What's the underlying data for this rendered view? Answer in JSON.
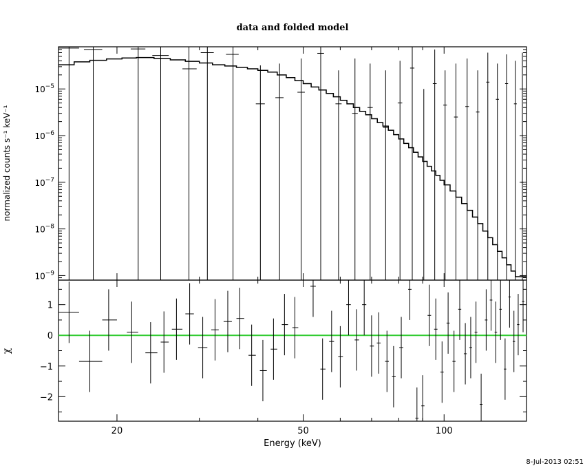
{
  "chart_data": {
    "type": "line",
    "title": "data and folded model",
    "xlabel": "Energy (keV)",
    "footer_timestamp": "8-Jul-2013 02:51",
    "xscale": "log",
    "xlim": [
      15,
      150
    ],
    "x_ticks": [
      {
        "value": 20,
        "label": "20"
      },
      {
        "value": 50,
        "label": "50"
      },
      {
        "value": 100,
        "label": "100"
      }
    ],
    "top_panel": {
      "ylabel": "normalized counts s⁻¹ keV⁻¹",
      "yscale": "log",
      "ylim": [
        8e-10,
        8e-05
      ],
      "y_ticks": [
        {
          "value": 1e-09,
          "label": "10",
          "exp": "−9"
        },
        {
          "value": 1e-08,
          "label": "10",
          "exp": "−8"
        },
        {
          "value": 1e-07,
          "label": "10",
          "exp": "−7"
        },
        {
          "value": 1e-06,
          "label": "10",
          "exp": "−6"
        },
        {
          "value": 1e-05,
          "label": "10",
          "exp": "−5"
        }
      ],
      "model_step": [
        [
          15,
          3.3e-05
        ],
        [
          16.2,
          3.8e-05
        ],
        [
          17.5,
          4.1e-05
        ],
        [
          19,
          4.4e-05
        ],
        [
          20.5,
          4.6e-05
        ],
        [
          22,
          4.7e-05
        ],
        [
          24,
          4.5e-05
        ],
        [
          26,
          4.2e-05
        ],
        [
          28,
          3.9e-05
        ],
        [
          30,
          3.6e-05
        ],
        [
          32,
          3.3e-05
        ],
        [
          34,
          3.1e-05
        ],
        [
          36,
          2.9e-05
        ],
        [
          38,
          2.7e-05
        ],
        [
          40,
          2.5e-05
        ],
        [
          42,
          2.3e-05
        ],
        [
          44,
          2e-05
        ],
        [
          46,
          1.75e-05
        ],
        [
          48,
          1.5e-05
        ],
        [
          50,
          1.3e-05
        ],
        [
          52,
          1.1e-05
        ],
        [
          54,
          9.5e-06
        ],
        [
          56,
          8e-06
        ],
        [
          58,
          6.8e-06
        ],
        [
          60,
          5.7e-06
        ],
        [
          62,
          4.8e-06
        ],
        [
          64,
          4e-06
        ],
        [
          66,
          3.3e-06
        ],
        [
          68,
          2.8e-06
        ],
        [
          70,
          2.3e-06
        ],
        [
          72,
          1.9e-06
        ],
        [
          74,
          1.6e-06
        ],
        [
          76,
          1.3e-06
        ],
        [
          78,
          1.05e-06
        ],
        [
          80,
          8.5e-07
        ],
        [
          82,
          6.8e-07
        ],
        [
          84,
          5.5e-07
        ],
        [
          86,
          4.4e-07
        ],
        [
          88,
          3.5e-07
        ],
        [
          90,
          2.8e-07
        ],
        [
          92,
          2.2e-07
        ],
        [
          94,
          1.75e-07
        ],
        [
          96,
          1.4e-07
        ],
        [
          98,
          1.1e-07
        ],
        [
          100,
          8.8e-08
        ],
        [
          103,
          6.5e-08
        ],
        [
          106,
          4.8e-08
        ],
        [
          109,
          3.5e-08
        ],
        [
          112,
          2.5e-08
        ],
        [
          115,
          1.8e-08
        ],
        [
          118,
          1.3e-08
        ],
        [
          121,
          9e-09
        ],
        [
          124,
          6.5e-09
        ],
        [
          127,
          4.6e-09
        ],
        [
          130,
          3.3e-09
        ],
        [
          133,
          2.4e-09
        ],
        [
          136,
          1.7e-09
        ],
        [
          139,
          1.25e-09
        ],
        [
          142,
          9.5e-10
        ],
        [
          150,
          9.5e-10
        ]
      ],
      "data_points": [
        {
          "x": 15.8,
          "xlo": 15,
          "xhi": 16.6,
          "y": 7.5e-05,
          "ylo": 8e-10,
          "yhi": 8e-05
        },
        {
          "x": 17.8,
          "xlo": 17,
          "xhi": 18.6,
          "y": 7e-05,
          "ylo": 8e-10,
          "yhi": 8e-05
        },
        {
          "x": 22.2,
          "xlo": 21.4,
          "xhi": 23.0,
          "y": 7.2e-05,
          "ylo": 8e-10,
          "yhi": 8e-05
        },
        {
          "x": 24.8,
          "xlo": 23.8,
          "xhi": 25.8,
          "y": 5.2e-05,
          "ylo": 8e-10,
          "yhi": 8e-05
        },
        {
          "x": 28.5,
          "xlo": 27.6,
          "xhi": 29.6,
          "y": 2.7e-05,
          "ylo": 8e-10,
          "yhi": 8e-05
        },
        {
          "x": 31.2,
          "xlo": 30.2,
          "xhi": 32.2,
          "y": 6e-05,
          "ylo": 8e-10,
          "yhi": 8e-05
        },
        {
          "x": 35.4,
          "xlo": 34.2,
          "xhi": 36.4,
          "y": 5.5e-05,
          "ylo": 8e-10,
          "yhi": 8e-05
        },
        {
          "x": 40.5,
          "xlo": 39.6,
          "xhi": 41.4,
          "y": 4.8e-06,
          "ylo": 8e-10,
          "yhi": 3.2e-05
        },
        {
          "x": 44.5,
          "xlo": 43.6,
          "xhi": 45.4,
          "y": 6.5e-06,
          "ylo": 8e-10,
          "yhi": 3.5e-05
        },
        {
          "x": 49.5,
          "xlo": 48.6,
          "xhi": 50.4,
          "y": 8.5e-06,
          "ylo": 8e-10,
          "yhi": 4.5e-05
        },
        {
          "x": 54.5,
          "xlo": 53.6,
          "xhi": 55.4,
          "y": 5.8e-05,
          "ylo": 8e-10,
          "yhi": 8e-05
        },
        {
          "x": 59.5,
          "xlo": 58.6,
          "xhi": 60.4,
          "y": 4.8e-06,
          "ylo": 8e-10,
          "yhi": 2.5e-05
        },
        {
          "x": 64.5,
          "xlo": 63.6,
          "xhi": 65.4,
          "y": 3e-06,
          "ylo": 8e-10,
          "yhi": 4.5e-05
        },
        {
          "x": 69.5,
          "xlo": 68.6,
          "xhi": 70.4,
          "y": 4e-06,
          "ylo": 8e-10,
          "yhi": 3.5e-05
        },
        {
          "x": 75.0,
          "xlo": 74.0,
          "xhi": 76.0,
          "y": 1.5e-06,
          "ylo": 8e-10,
          "yhi": 2.5e-05
        },
        {
          "x": 80.5,
          "xlo": 79.6,
          "xhi": 81.4,
          "y": 5e-06,
          "ylo": 8e-10,
          "yhi": 4e-05
        },
        {
          "x": 85.5,
          "xlo": 84.6,
          "xhi": 86.4,
          "y": 2.8e-05,
          "ylo": 8e-10,
          "yhi": 8e-05
        },
        {
          "x": 90.5,
          "xlo": 89.6,
          "xhi": 91.4,
          "y": 8e-10,
          "ylo": 8e-10,
          "yhi": 1e-05
        },
        {
          "x": 95.5,
          "xlo": 94.6,
          "xhi": 96.4,
          "y": 1.3e-05,
          "ylo": 8e-10,
          "yhi": 7e-05
        },
        {
          "x": 100.5,
          "xlo": 99.6,
          "xhi": 101.4,
          "y": 4.5e-06,
          "ylo": 8e-10,
          "yhi": 2.5e-05
        },
        {
          "x": 106.0,
          "xlo": 105.0,
          "xhi": 107.0,
          "y": 2.5e-06,
          "ylo": 8e-10,
          "yhi": 3.5e-05
        },
        {
          "x": 112.0,
          "xlo": 111.0,
          "xhi": 113.0,
          "y": 4.2e-06,
          "ylo": 8e-10,
          "yhi": 4.5e-05
        },
        {
          "x": 118.0,
          "xlo": 117.0,
          "xhi": 119.0,
          "y": 3.2e-06,
          "ylo": 8e-10,
          "yhi": 2.5e-05
        },
        {
          "x": 124.0,
          "xlo": 123.0,
          "xhi": 125.0,
          "y": 1.4e-05,
          "ylo": 8e-10,
          "yhi": 6e-05
        },
        {
          "x": 130.0,
          "xlo": 129.0,
          "xhi": 131.0,
          "y": 6e-06,
          "ylo": 8e-10,
          "yhi": 3.5e-05
        },
        {
          "x": 136.0,
          "xlo": 135.0,
          "xhi": 137.0,
          "y": 1.3e-05,
          "ylo": 8e-10,
          "yhi": 5.5e-05
        },
        {
          "x": 142.0,
          "xlo": 141.0,
          "xhi": 143.0,
          "y": 4.8e-06,
          "ylo": 8e-10,
          "yhi": 4e-05
        },
        {
          "x": 147.0,
          "xlo": 146.0,
          "xhi": 148.0,
          "y": 1e-07,
          "ylo": 8e-10,
          "yhi": 6e-05
        }
      ]
    },
    "bottom_panel": {
      "ylabel": "χ",
      "ylim": [
        -2.8,
        1.8
      ],
      "y_ticks": [
        {
          "value": -2,
          "label": "−2"
        },
        {
          "value": -1,
          "label": "−1"
        },
        {
          "value": 0,
          "label": "0"
        },
        {
          "value": 1,
          "label": "1"
        }
      ],
      "zero_line_color": "#33cc33",
      "residuals": [
        {
          "x": 15.8,
          "xlo": 15,
          "xhi": 16.6,
          "y": 0.75,
          "err": 1.0
        },
        {
          "x": 17.5,
          "xlo": 16.6,
          "xhi": 18.6,
          "y": -0.85,
          "err": 1.0
        },
        {
          "x": 19.2,
          "xlo": 18.6,
          "xhi": 20.0,
          "y": 0.5,
          "err": 1.0
        },
        {
          "x": 21.5,
          "xlo": 21.0,
          "xhi": 22.2,
          "y": 0.1,
          "err": 1.0
        },
        {
          "x": 23.6,
          "xlo": 23.0,
          "xhi": 24.4,
          "y": -0.57,
          "err": 1.0
        },
        {
          "x": 25.2,
          "xlo": 24.8,
          "xhi": 25.8,
          "y": -0.22,
          "err": 1.0
        },
        {
          "x": 26.8,
          "xlo": 26.2,
          "xhi": 27.6,
          "y": 0.2,
          "err": 1.0
        },
        {
          "x": 28.6,
          "xlo": 28.0,
          "xhi": 29.2,
          "y": 0.7,
          "err": 1.0
        },
        {
          "x": 30.5,
          "xlo": 29.8,
          "xhi": 31.2,
          "y": -0.4,
          "err": 1.0
        },
        {
          "x": 32.4,
          "xlo": 31.8,
          "xhi": 33.0,
          "y": 0.18,
          "err": 1.0
        },
        {
          "x": 34.5,
          "xlo": 33.8,
          "xhi": 35.2,
          "y": 0.45,
          "err": 1.0
        },
        {
          "x": 36.6,
          "xlo": 36.0,
          "xhi": 37.4,
          "y": 0.55,
          "err": 1.0
        },
        {
          "x": 38.8,
          "xlo": 38.2,
          "xhi": 39.6,
          "y": -0.65,
          "err": 1.0
        },
        {
          "x": 41.0,
          "xlo": 40.4,
          "xhi": 41.8,
          "y": -1.15,
          "err": 1.0
        },
        {
          "x": 43.2,
          "xlo": 42.6,
          "xhi": 44.0,
          "y": -0.45,
          "err": 1.0
        },
        {
          "x": 45.6,
          "xlo": 45.0,
          "xhi": 46.4,
          "y": 0.35,
          "err": 1.0
        },
        {
          "x": 48.0,
          "xlo": 47.4,
          "xhi": 48.8,
          "y": 0.25,
          "err": 1.0
        },
        {
          "x": 52.5,
          "xlo": 51.8,
          "xhi": 53.2,
          "y": 1.6,
          "err": 1.0
        },
        {
          "x": 55.0,
          "xlo": 54.4,
          "xhi": 55.8,
          "y": -1.1,
          "err": 1.0
        },
        {
          "x": 57.5,
          "xlo": 56.8,
          "xhi": 58.2,
          "y": -0.2,
          "err": 1.0
        },
        {
          "x": 60.0,
          "xlo": 59.4,
          "xhi": 60.8,
          "y": -0.7,
          "err": 1.0
        },
        {
          "x": 62.5,
          "xlo": 61.8,
          "xhi": 63.2,
          "y": 1.0,
          "err": 1.0
        },
        {
          "x": 65.0,
          "xlo": 64.4,
          "xhi": 65.8,
          "y": -0.15,
          "err": 1.0
        },
        {
          "x": 67.5,
          "xlo": 66.8,
          "xhi": 68.2,
          "y": 1.0,
          "err": 1.0
        },
        {
          "x": 70.0,
          "xlo": 69.4,
          "xhi": 70.8,
          "y": -0.35,
          "err": 1.0
        },
        {
          "x": 72.5,
          "xlo": 71.8,
          "xhi": 73.2,
          "y": -0.25,
          "err": 1.0
        },
        {
          "x": 75.5,
          "xlo": 74.8,
          "xhi": 76.2,
          "y": -0.85,
          "err": 1.0
        },
        {
          "x": 78.0,
          "xlo": 77.4,
          "xhi": 78.8,
          "y": -1.35,
          "err": 1.0
        },
        {
          "x": 81.0,
          "xlo": 80.2,
          "xhi": 81.8,
          "y": -0.4,
          "err": 1.0
        },
        {
          "x": 84.5,
          "xlo": 83.8,
          "xhi": 85.2,
          "y": 1.5,
          "err": 1.0
        },
        {
          "x": 87.5,
          "xlo": 86.8,
          "xhi": 88.2,
          "y": -2.7,
          "err": 1.0
        },
        {
          "x": 90.0,
          "xlo": 89.4,
          "xhi": 90.8,
          "y": -2.3,
          "err": 1.0
        },
        {
          "x": 93.0,
          "xlo": 92.2,
          "xhi": 93.8,
          "y": 0.65,
          "err": 1.0
        },
        {
          "x": 96.0,
          "xlo": 95.2,
          "xhi": 96.8,
          "y": 0.2,
          "err": 1.0
        },
        {
          "x": 99.0,
          "xlo": 98.2,
          "xhi": 99.8,
          "y": -1.2,
          "err": 1.0
        },
        {
          "x": 102.0,
          "xlo": 101.2,
          "xhi": 102.8,
          "y": 0.4,
          "err": 1.0
        },
        {
          "x": 105.0,
          "xlo": 104.2,
          "xhi": 105.8,
          "y": -0.85,
          "err": 1.0
        },
        {
          "x": 108.0,
          "xlo": 107.2,
          "xhi": 108.8,
          "y": 0.85,
          "err": 1.0
        },
        {
          "x": 111.0,
          "xlo": 110.2,
          "xhi": 111.8,
          "y": -0.6,
          "err": 1.0
        },
        {
          "x": 114.0,
          "xlo": 113.2,
          "xhi": 114.8,
          "y": -0.4,
          "err": 1.0
        },
        {
          "x": 117.0,
          "xlo": 116.2,
          "xhi": 117.8,
          "y": 0.1,
          "err": 1.0
        },
        {
          "x": 120.0,
          "xlo": 119.2,
          "xhi": 120.8,
          "y": -2.25,
          "err": 1.0
        },
        {
          "x": 123.0,
          "xlo": 122.2,
          "xhi": 123.8,
          "y": 0.5,
          "err": 1.0
        },
        {
          "x": 126.0,
          "xlo": 125.2,
          "xhi": 126.8,
          "y": 1.15,
          "err": 1.0
        },
        {
          "x": 129.0,
          "xlo": 128.2,
          "xhi": 129.8,
          "y": 0.1,
          "err": 1.0
        },
        {
          "x": 132.0,
          "xlo": 131.2,
          "xhi": 132.8,
          "y": 0.85,
          "err": 1.0
        },
        {
          "x": 135.0,
          "xlo": 134.2,
          "xhi": 135.8,
          "y": -1.1,
          "err": 1.0
        },
        {
          "x": 138.0,
          "xlo": 137.2,
          "xhi": 138.8,
          "y": 1.25,
          "err": 1.0
        },
        {
          "x": 141.0,
          "xlo": 140.2,
          "xhi": 141.8,
          "y": -0.2,
          "err": 1.0
        },
        {
          "x": 144.0,
          "xlo": 143.2,
          "xhi": 144.8,
          "y": 0.35,
          "err": 1.0
        },
        {
          "x": 147.5,
          "xlo": 146.8,
          "xhi": 148.4,
          "y": 1.1,
          "err": 1.0
        }
      ]
    }
  }
}
